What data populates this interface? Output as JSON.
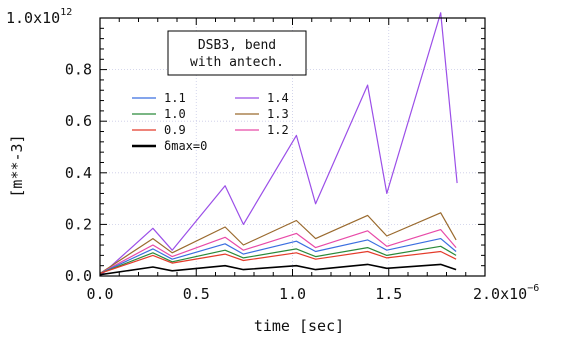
{
  "chart_data": {
    "type": "line",
    "annotation": [
      "DSB3, bend",
      "with antech."
    ],
    "xlabel": "time [sec]",
    "ylabel": "[m**-3]",
    "xlim": [
      0,
      2e-06
    ],
    "ylim": [
      0,
      1000000000000.0
    ],
    "grid": true,
    "legend_placement": "upper-left",
    "x_ticks": [
      {
        "value": 0.0,
        "label": "0.0"
      },
      {
        "value": 5e-07,
        "label": "0.5"
      },
      {
        "value": 1e-06,
        "label": "1.0"
      },
      {
        "value": 1.5e-06,
        "label": "1.5"
      },
      {
        "value": 2e-06,
        "label": "2.0x10",
        "exp": "-6"
      }
    ],
    "y_ticks": [
      {
        "value": 0.0,
        "label": "0.0"
      },
      {
        "value": 200000000000.0,
        "label": "0.2"
      },
      {
        "value": 400000000000.0,
        "label": "0.4"
      },
      {
        "value": 600000000000.0,
        "label": "0.6"
      },
      {
        "value": 800000000000.0,
        "label": "0.8"
      },
      {
        "value": 1000000000000.0,
        "label": "1.0x10",
        "exp": "12"
      }
    ],
    "legend": [
      {
        "label": "1.1",
        "color": "#3b6fe0"
      },
      {
        "label": "1.0",
        "color": "#2a8a3a"
      },
      {
        "label": "0.9",
        "color": "#e43b2a"
      },
      {
        "label": "δmax=0",
        "color": "#000000"
      },
      {
        "label": "1.4",
        "color": "#9b4fe8"
      },
      {
        "label": "1.3",
        "color": "#9a6a2e"
      },
      {
        "label": "1.2",
        "color": "#e84aa8"
      }
    ],
    "series": [
      {
        "name": "1.4",
        "color": "#9b4fe8",
        "x": [
          0,
          2.75e-07,
          3.75e-07,
          6.5e-07,
          7.45e-07,
          1.02e-06,
          1.12e-06,
          1.39e-06,
          1.49e-06,
          1.77e-06,
          1.85e-06,
          1.855e-06
        ],
        "y": [
          0,
          185000000000.0,
          100000000000.0,
          350000000000.0,
          200000000000.0,
          545000000000.0,
          280000000000.0,
          740000000000.0,
          320000000000.0,
          1020000000000.0,
          400000000000.0,
          360000000000.0
        ]
      },
      {
        "name": "1.3",
        "color": "#9a6a2e",
        "x": [
          0,
          2.75e-07,
          3.75e-07,
          6.5e-07,
          7.45e-07,
          1.02e-06,
          1.12e-06,
          1.39e-06,
          1.49e-06,
          1.77e-06,
          1.85e-06
        ],
        "y": [
          10000000000.0,
          145000000000.0,
          90000000000.0,
          190000000000.0,
          120000000000.0,
          215000000000.0,
          145000000000.0,
          235000000000.0,
          155000000000.0,
          245000000000.0,
          140000000000.0
        ]
      },
      {
        "name": "1.2",
        "color": "#e84aa8",
        "x": [
          0,
          2.75e-07,
          3.75e-07,
          6.5e-07,
          7.45e-07,
          1.02e-06,
          1.12e-06,
          1.39e-06,
          1.49e-06,
          1.77e-06,
          1.85e-06
        ],
        "y": [
          10000000000.0,
          120000000000.0,
          75000000000.0,
          150000000000.0,
          100000000000.0,
          165000000000.0,
          110000000000.0,
          175000000000.0,
          115000000000.0,
          180000000000.0,
          110000000000.0
        ]
      },
      {
        "name": "1.1",
        "color": "#3b6fe0",
        "x": [
          0,
          2.75e-07,
          3.75e-07,
          6.5e-07,
          7.45e-07,
          1.02e-06,
          1.12e-06,
          1.39e-06,
          1.49e-06,
          1.77e-06,
          1.85e-06
        ],
        "y": [
          10000000000.0,
          105000000000.0,
          65000000000.0,
          125000000000.0,
          85000000000.0,
          135000000000.0,
          95000000000.0,
          140000000000.0,
          100000000000.0,
          145000000000.0,
          95000000000.0
        ]
      },
      {
        "name": "1.0",
        "color": "#2a8a3a",
        "x": [
          0,
          2.75e-07,
          3.75e-07,
          6.5e-07,
          7.45e-07,
          1.02e-06,
          1.12e-06,
          1.39e-06,
          1.49e-06,
          1.77e-06,
          1.85e-06
        ],
        "y": [
          10000000000.0,
          90000000000.0,
          55000000000.0,
          100000000000.0,
          70000000000.0,
          105000000000.0,
          75000000000.0,
          110000000000.0,
          80000000000.0,
          115000000000.0,
          80000000000.0
        ]
      },
      {
        "name": "0.9",
        "color": "#e43b2a",
        "x": [
          0,
          2.75e-07,
          3.75e-07,
          6.5e-07,
          7.45e-07,
          1.02e-06,
          1.12e-06,
          1.39e-06,
          1.49e-06,
          1.77e-06,
          1.85e-06
        ],
        "y": [
          10000000000.0,
          80000000000.0,
          50000000000.0,
          85000000000.0,
          60000000000.0,
          90000000000.0,
          65000000000.0,
          95000000000.0,
          70000000000.0,
          95000000000.0,
          65000000000.0
        ]
      },
      {
        "name": "δmax=0",
        "color": "#000000",
        "x": [
          0,
          2.75e-07,
          3.75e-07,
          6.5e-07,
          7.45e-07,
          1.02e-06,
          1.12e-06,
          1.39e-06,
          1.49e-06,
          1.77e-06,
          1.85e-06
        ],
        "y": [
          5000000000.0,
          35000000000.0,
          20000000000.0,
          40000000000.0,
          25000000000.0,
          40000000000.0,
          25000000000.0,
          45000000000.0,
          30000000000.0,
          45000000000.0,
          25000000000.0
        ]
      }
    ]
  }
}
